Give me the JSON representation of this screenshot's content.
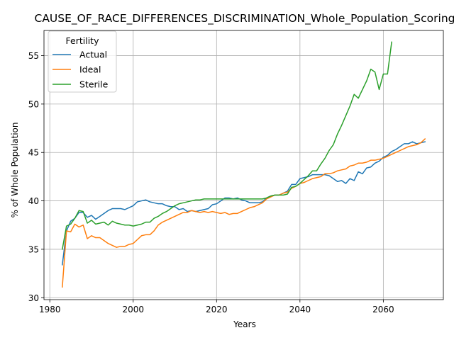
{
  "chart_data": {
    "type": "line",
    "title": "CAUSE_OF_RACE_DIFFERENCES_DISCRIMINATION_Whole_Population_Scoring",
    "xlabel": "Years",
    "ylabel": "% of Whole Population",
    "xlim": [
      1978.6,
      2074.4
    ],
    "ylim": [
      29.8,
      57.6
    ],
    "xticks": [
      1980,
      2000,
      2020,
      2040,
      2060
    ],
    "yticks": [
      30,
      35,
      40,
      45,
      50,
      55
    ],
    "grid": true,
    "legend": {
      "title": "Fertility",
      "placement": "top-left"
    },
    "series": [
      {
        "name": "Actual",
        "color": "#1f77b4",
        "x": [
          1983,
          1984,
          1985,
          1986,
          1987,
          1988,
          1989,
          1990,
          1991,
          1992,
          1993,
          1994,
          1995,
          1996,
          1997,
          1998,
          1999,
          2000,
          2001,
          2002,
          2003,
          2004,
          2005,
          2006,
          2007,
          2008,
          2009,
          2010,
          2011,
          2012,
          2013,
          2014,
          2015,
          2016,
          2017,
          2018,
          2019,
          2020,
          2021,
          2022,
          2023,
          2024,
          2025,
          2026,
          2027,
          2028,
          2029,
          2030,
          2031,
          2032,
          2033,
          2034,
          2035,
          2036,
          2037,
          2038,
          2039,
          2040,
          2041,
          2042,
          2043,
          2044,
          2045,
          2046,
          2047,
          2048,
          2049,
          2050,
          2051,
          2052,
          2053,
          2054,
          2055,
          2056,
          2057,
          2058,
          2059,
          2060,
          2061,
          2062,
          2063,
          2064,
          2065,
          2066,
          2067,
          2068,
          2069,
          2070
        ],
        "values": [
          33.4,
          36.9,
          37.9,
          38.2,
          38.8,
          38.8,
          38.3,
          38.5,
          38.1,
          38.4,
          38.7,
          39.0,
          39.2,
          39.2,
          39.2,
          39.1,
          39.3,
          39.5,
          39.9,
          40.0,
          40.1,
          39.9,
          39.8,
          39.7,
          39.7,
          39.5,
          39.4,
          39.4,
          39.1,
          39.2,
          38.9,
          39.0,
          38.9,
          39.0,
          39.1,
          39.2,
          39.6,
          39.7,
          40.0,
          40.3,
          40.3,
          40.2,
          40.3,
          40.1,
          40.0,
          39.8,
          39.8,
          39.8,
          39.9,
          40.3,
          40.5,
          40.6,
          40.6,
          40.8,
          41.0,
          41.7,
          41.7,
          42.3,
          42.4,
          42.5,
          42.7,
          42.7,
          42.7,
          42.7,
          42.6,
          42.3,
          42.0,
          42.1,
          41.8,
          42.3,
          42.1,
          43.0,
          42.8,
          43.4,
          43.5,
          43.9,
          44.1,
          44.5,
          44.7,
          45.1,
          45.3,
          45.6,
          45.9,
          45.9,
          46.1,
          45.9,
          46.0,
          46.1
        ]
      },
      {
        "name": "Ideal",
        "color": "#ff7f0e",
        "x": [
          1983,
          1984,
          1985,
          1986,
          1987,
          1988,
          1989,
          1990,
          1991,
          1992,
          1993,
          1994,
          1995,
          1996,
          1997,
          1998,
          1999,
          2000,
          2001,
          2002,
          2003,
          2004,
          2005,
          2006,
          2007,
          2008,
          2009,
          2010,
          2011,
          2012,
          2013,
          2014,
          2015,
          2016,
          2017,
          2018,
          2019,
          2020,
          2021,
          2022,
          2023,
          2024,
          2025,
          2026,
          2027,
          2028,
          2029,
          2030,
          2031,
          2032,
          2033,
          2034,
          2035,
          2036,
          2037,
          2038,
          2039,
          2040,
          2041,
          2042,
          2043,
          2044,
          2045,
          2046,
          2047,
          2048,
          2049,
          2050,
          2051,
          2052,
          2053,
          2054,
          2055,
          2056,
          2057,
          2058,
          2059,
          2060,
          2061,
          2062,
          2063,
          2064,
          2065,
          2066,
          2067,
          2068,
          2069,
          2070
        ],
        "values": [
          31.1,
          36.9,
          36.8,
          37.6,
          37.3,
          37.5,
          36.1,
          36.4,
          36.2,
          36.2,
          35.9,
          35.6,
          35.4,
          35.2,
          35.3,
          35.3,
          35.5,
          35.6,
          36.0,
          36.4,
          36.5,
          36.5,
          36.9,
          37.5,
          37.8,
          38.0,
          38.2,
          38.4,
          38.6,
          38.8,
          38.8,
          39.0,
          38.9,
          38.8,
          38.9,
          38.8,
          38.9,
          38.8,
          38.7,
          38.8,
          38.6,
          38.7,
          38.7,
          38.9,
          39.1,
          39.3,
          39.4,
          39.6,
          39.8,
          40.2,
          40.4,
          40.6,
          40.6,
          40.8,
          40.9,
          41.3,
          41.5,
          41.8,
          41.9,
          42.1,
          42.3,
          42.4,
          42.5,
          42.8,
          42.8,
          42.9,
          43.1,
          43.2,
          43.3,
          43.6,
          43.7,
          43.9,
          43.9,
          44.0,
          44.2,
          44.2,
          44.3,
          44.4,
          44.6,
          44.8,
          45.0,
          45.2,
          45.4,
          45.6,
          45.7,
          45.8,
          46.0,
          46.4
        ]
      },
      {
        "name": "Sterile",
        "color": "#2ca02c",
        "x": [
          1983,
          1984,
          1985,
          1986,
          1987,
          1988,
          1989,
          1990,
          1991,
          1992,
          1993,
          1994,
          1995,
          1996,
          1997,
          1998,
          1999,
          2000,
          2001,
          2002,
          2003,
          2004,
          2005,
          2006,
          2007,
          2008,
          2009,
          2010,
          2011,
          2012,
          2013,
          2014,
          2015,
          2016,
          2017,
          2018,
          2019,
          2020,
          2021,
          2022,
          2023,
          2024,
          2025,
          2026,
          2027,
          2028,
          2029,
          2030,
          2031,
          2032,
          2033,
          2034,
          2035,
          2036,
          2037,
          2038,
          2039,
          2040,
          2041,
          2042,
          2043,
          2044,
          2045,
          2046,
          2047,
          2048,
          2049,
          2050,
          2051,
          2052,
          2053,
          2054,
          2055,
          2056,
          2057,
          2058,
          2059,
          2060,
          2061,
          2062
        ],
        "values": [
          35.0,
          37.4,
          37.6,
          38.2,
          39.0,
          38.9,
          37.7,
          38.0,
          37.6,
          37.7,
          37.8,
          37.5,
          37.9,
          37.7,
          37.6,
          37.5,
          37.5,
          37.4,
          37.5,
          37.6,
          37.8,
          37.8,
          38.2,
          38.4,
          38.7,
          38.9,
          39.2,
          39.5,
          39.7,
          39.8,
          39.9,
          40.0,
          40.1,
          40.1,
          40.2,
          40.2,
          40.2,
          40.2,
          40.2,
          40.2,
          40.2,
          40.2,
          40.2,
          40.2,
          40.2,
          40.2,
          40.2,
          40.2,
          40.2,
          40.3,
          40.5,
          40.6,
          40.6,
          40.6,
          40.7,
          41.4,
          41.5,
          41.8,
          42.2,
          42.6,
          43.1,
          43.1,
          43.8,
          44.4,
          45.2,
          45.8,
          46.9,
          47.8,
          48.8,
          49.8,
          51.0,
          50.6,
          51.5,
          52.4,
          53.6,
          53.3,
          51.5,
          53.1,
          53.1,
          56.4
        ]
      }
    ]
  }
}
